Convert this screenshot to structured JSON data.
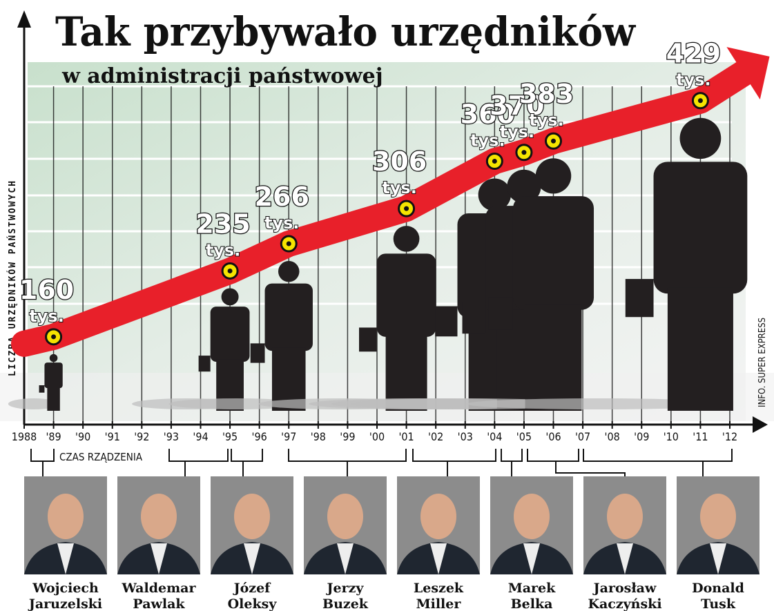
{
  "chart_data": {
    "type": "line",
    "title": "Tak przybywało urzędników",
    "subtitle": "w administracji państwowej",
    "y_label": "LICZBA URZĘDNIKÓW PAŃSTWOWYCH",
    "x_label": "CZAS RZĄDZENIA",
    "source": "INFO. SUPER EXPRESS",
    "unit": "tys.",
    "x": [
      1989,
      1995,
      1997,
      2001,
      2004,
      2005,
      2006,
      2011
    ],
    "values": [
      160,
      235,
      266,
      306,
      360,
      370,
      383,
      429
    ],
    "color": "#e8202a",
    "marker_color": "#f5e400",
    "xlim": [
      1988,
      2012
    ],
    "ylim": [
      60,
      520
    ],
    "xticks": [
      1988,
      {
        "value": 1989,
        "label": "'89"
      },
      {
        "value": 1990,
        "label": "'90"
      },
      {
        "value": 1991,
        "label": "'91"
      },
      {
        "value": 1992,
        "label": "'92"
      },
      {
        "value": 1993,
        "label": "'93"
      },
      {
        "value": 1994,
        "label": "'94"
      },
      {
        "value": 1995,
        "label": "'95"
      },
      {
        "value": 1996,
        "label": "'96"
      },
      {
        "value": 1997,
        "label": "'97"
      },
      {
        "value": 1998,
        "label": "'98"
      },
      {
        "value": 1999,
        "label": "'99"
      },
      {
        "value": 2000,
        "label": "'00"
      },
      {
        "value": 2001,
        "label": "'01"
      },
      {
        "value": 2002,
        "label": "'02"
      },
      {
        "value": 2003,
        "label": "'03"
      },
      {
        "value": 2004,
        "label": "'04"
      },
      {
        "value": 2005,
        "label": "'05"
      },
      {
        "value": 2006,
        "label": "'06"
      },
      {
        "value": 2007,
        "label": "'07"
      },
      {
        "value": 2008,
        "label": "'08"
      },
      {
        "value": 2009,
        "label": "'09"
      },
      {
        "value": 2010,
        "label": "'10"
      },
      {
        "value": 2011,
        "label": "'11"
      },
      {
        "value": 2012,
        "label": "'12"
      }
    ],
    "persons": [
      {
        "first": "Wojciech",
        "last": "Jaruzelski"
      },
      {
        "first": "Waldemar",
        "last": "Pawlak"
      },
      {
        "first": "Józef",
        "last": "Oleksy"
      },
      {
        "first": "Jerzy",
        "last": "Buzek"
      },
      {
        "first": "Leszek",
        "last": "Miller"
      },
      {
        "first": "Marek",
        "last": "Belka"
      },
      {
        "first": "Jarosław",
        "last": "Kaczyński"
      },
      {
        "first": "Donald",
        "last": "Tusk"
      }
    ]
  }
}
